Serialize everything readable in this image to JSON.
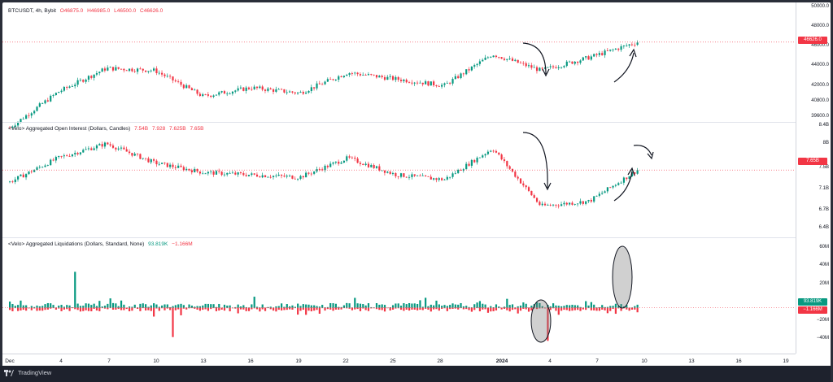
{
  "price_panel": {
    "legend_symbol": "BTCUSDT, 4h, Bybit",
    "legend_open": "O46875.0",
    "legend_high": "H46985.0",
    "legend_low": "L46500.0",
    "legend_close": "C46626.0",
    "ticks": [
      "50000.0",
      "48000.0",
      "46000.0",
      "44000.0",
      "42000.0",
      "40800.0",
      "39600.0"
    ],
    "last_price_badge": "46626.0",
    "colors": {
      "up": "#089981",
      "down": "#f23645",
      "price_line": "#f23645"
    }
  },
  "oi_panel": {
    "legend_name": "<Velo> Aggregated Open Interest (Dollars, Candles)",
    "legend_values": [
      "7.54B",
      "7.928",
      "7.625B",
      "7.65B"
    ],
    "ticks": [
      "8.4B",
      "8B",
      "7.5B",
      "7.1B",
      "6.7B",
      "6.4B"
    ],
    "last_value_badge": "7.65B"
  },
  "liq_panel": {
    "legend_name": "<Velo> Aggregated Liquidations (Dollars, Standard, None)",
    "legend_long": "93.819K",
    "legend_short": "−1.166M",
    "ticks": [
      "60M",
      "40M",
      "20M",
      "−20M",
      "−40M"
    ],
    "badge_long": "93.819K",
    "badge_short": "−1.166M"
  },
  "time_axis": {
    "labels": [
      "Dec",
      "4",
      "7",
      "10",
      "13",
      "16",
      "19",
      "22",
      "25",
      "28",
      "2024",
      "4",
      "7",
      "10",
      "13",
      "16",
      "19"
    ]
  },
  "footer": {
    "brand": "TradingView"
  },
  "chart_data": [
    {
      "type": "candlestick",
      "title": "BTCUSDT, 4h, Bybit",
      "x": [
        "Dec 1",
        "Dec 4",
        "Dec 7",
        "Dec 10",
        "Dec 13",
        "Dec 16",
        "Dec 19",
        "Dec 22",
        "Dec 25",
        "Dec 28",
        "Jan 1",
        "Jan 4",
        "Jan 7",
        "Jan 10"
      ],
      "close": [
        38700,
        42000,
        44200,
        44000,
        41600,
        42400,
        41900,
        43800,
        43200,
        42600,
        45500,
        44000,
        45200,
        46626
      ],
      "ylim": [
        39000,
        50000
      ],
      "last": 46626
    },
    {
      "type": "candlestick",
      "title": "<Velo> Aggregated Open Interest (Dollars, Candles)",
      "x": [
        "Dec 1",
        "Dec 4",
        "Dec 7",
        "Dec 10",
        "Dec 13",
        "Dec 16",
        "Dec 19",
        "Dec 22",
        "Dec 25",
        "Dec 28",
        "Jan 1",
        "Jan 4",
        "Jan 7",
        "Jan 10"
      ],
      "close": [
        7.4,
        7.9,
        8.2,
        7.8,
        7.6,
        7.55,
        7.5,
        7.9,
        7.55,
        7.45,
        8.1,
        6.9,
        7.0,
        7.65
      ],
      "unit": "B",
      "ylim": [
        6.3,
        8.6
      ],
      "last": 7.65
    },
    {
      "type": "bar",
      "title": "<Velo> Aggregated Liquidations (Dollars, Standard, None)",
      "unit": "M",
      "ylim": [
        -45,
        65
      ],
      "notable": [
        {
          "x": "Dec 5",
          "value": 38
        },
        {
          "x": "Dec 11",
          "value": -31
        },
        {
          "x": "Jan 3",
          "value": -35
        },
        {
          "x": "Jan 9",
          "value": 58
        }
      ],
      "last_long": "93.819K",
      "last_short": "−1.166M"
    }
  ]
}
